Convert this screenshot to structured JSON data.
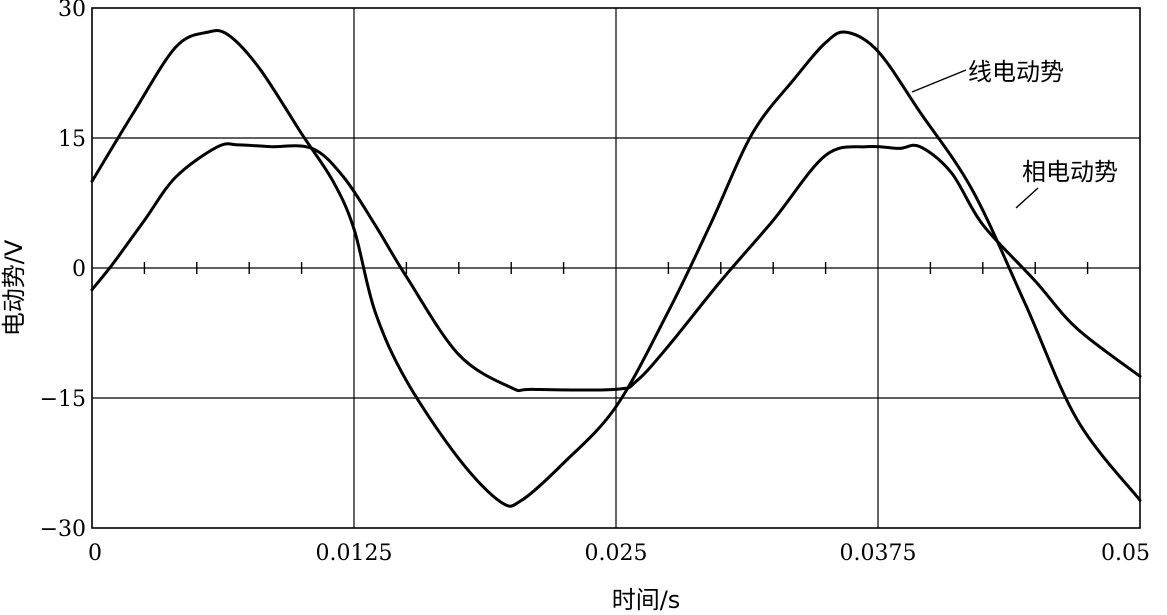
{
  "chart_data": {
    "type": "line",
    "xlabel": "时间/s",
    "ylabel": "电动势/V",
    "xlim": [
      0,
      0.05
    ],
    "ylim": [
      -30,
      30
    ],
    "x_ticks": [
      0,
      0.0125,
      0.025,
      0.0375,
      0.05
    ],
    "x_tick_labels": [
      "0",
      "0.0125",
      "0.025",
      "0.0375",
      "0.05"
    ],
    "y_ticks": [
      -30,
      -15,
      0,
      15,
      30
    ],
    "y_tick_labels": [
      "−30",
      "−15",
      "0",
      "15",
      "30"
    ],
    "minor_x_ticks": [
      0.0025,
      0.005,
      0.0075,
      0.01,
      0.015,
      0.0175,
      0.02,
      0.0225,
      0.0275,
      0.03,
      0.0325,
      0.035,
      0.04,
      0.0425,
      0.045,
      0.0475
    ],
    "grid": true,
    "series": [
      {
        "name": "线电动势",
        "color": "#000000",
        "x": [
          0,
          0.002,
          0.004,
          0.0055,
          0.0065,
          0.008,
          0.01,
          0.0115,
          0.0125,
          0.0135,
          0.015,
          0.0175,
          0.0195,
          0.0205,
          0.0225,
          0.025,
          0.0275,
          0.0295,
          0.0315,
          0.0335,
          0.035,
          0.036,
          0.0375,
          0.0395,
          0.042,
          0.0445,
          0.047,
          0.05
        ],
        "y": [
          10.0,
          18.0,
          25.5,
          27.2,
          26.9,
          23.0,
          15.5,
          10.0,
          4.5,
          -5.0,
          -13.0,
          -22.0,
          -27.0,
          -26.8,
          -22.5,
          -16.0,
          -5.0,
          5.0,
          15.5,
          21.8,
          26.0,
          27.2,
          25.0,
          18.0,
          9.0,
          -4.0,
          -17.5,
          -26.8
        ]
      },
      {
        "name": "相电动势",
        "color": "#000000",
        "x": [
          0,
          0.001,
          0.0025,
          0.004,
          0.006,
          0.007,
          0.0085,
          0.0105,
          0.012,
          0.0135,
          0.015,
          0.0175,
          0.02,
          0.021,
          0.025,
          0.026,
          0.0275,
          0.03,
          0.0325,
          0.035,
          0.037,
          0.0385,
          0.0395,
          0.041,
          0.0425,
          0.045,
          0.047,
          0.05
        ],
        "y": [
          -2.5,
          0.5,
          5.5,
          10.5,
          14.0,
          14.2,
          14.0,
          13.8,
          10.5,
          5.0,
          -1.0,
          -10.0,
          -13.8,
          -14.0,
          -14.0,
          -13.0,
          -9.0,
          -1.5,
          5.5,
          13.0,
          14.0,
          13.8,
          14.0,
          11.0,
          5.0,
          -1.5,
          -7.0,
          -12.5
        ]
      }
    ]
  }
}
